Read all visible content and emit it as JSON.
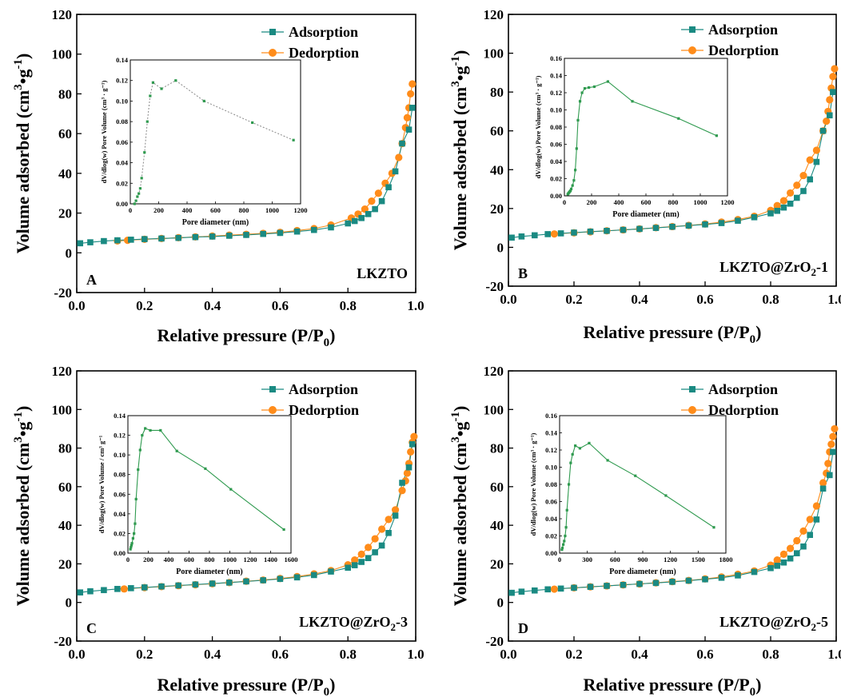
{
  "legend": {
    "adsorption": "Adsorption",
    "desorption": "Dedorption"
  },
  "colors": {
    "adsorption": "#1a8a82",
    "desorption": "#ff8c1a",
    "inset": "#2f9a4f"
  },
  "chart_data": [
    {
      "type": "line",
      "panel_letter": "A",
      "sample_label": "LKZTO",
      "xlabel": "Relative pressure (P/P",
      "xlabel_sub": "0",
      "xlabel_end": ")",
      "ylabel": "Volume adsorbed (cm",
      "ylabel_sup1": "3",
      "ylabel_mid": "•g",
      "ylabel_sup2": "-1",
      "ylabel_end": ")",
      "xlim": [
        0,
        1.0
      ],
      "ylim": [
        -20,
        120
      ],
      "xticks": [
        "0.0",
        "0.2",
        "0.4",
        "0.6",
        "0.8",
        "1.0"
      ],
      "yticks": [
        "-20",
        "0",
        "20",
        "40",
        "60",
        "80",
        "100",
        "120"
      ],
      "series": [
        {
          "name": "Adsorption",
          "x": [
            0.01,
            0.04,
            0.08,
            0.12,
            0.16,
            0.2,
            0.25,
            0.3,
            0.35,
            0.4,
            0.45,
            0.5,
            0.55,
            0.6,
            0.65,
            0.7,
            0.75,
            0.8,
            0.82,
            0.84,
            0.86,
            0.88,
            0.9,
            0.92,
            0.94,
            0.96,
            0.98,
            0.99
          ],
          "y": [
            4.8,
            5.3,
            5.9,
            6.3,
            6.6,
            6.9,
            7.2,
            7.5,
            7.9,
            8.2,
            8.6,
            9.0,
            9.5,
            10.0,
            10.7,
            11.5,
            12.8,
            14.8,
            16.0,
            17.5,
            19.5,
            22.0,
            26.0,
            33.0,
            41.0,
            55.0,
            62.0,
            73.0
          ]
        },
        {
          "name": "Dedorption",
          "x": [
            0.99,
            0.985,
            0.98,
            0.975,
            0.97,
            0.96,
            0.95,
            0.93,
            0.91,
            0.89,
            0.87,
            0.85,
            0.83,
            0.81,
            0.75,
            0.7,
            0.65,
            0.6,
            0.55,
            0.5,
            0.45,
            0.4,
            0.35,
            0.3,
            0.25,
            0.2,
            0.15,
            0.12
          ],
          "y": [
            85.0,
            80.0,
            73.0,
            68.0,
            63.0,
            55.0,
            48.0,
            40.0,
            35.0,
            30.0,
            26.0,
            22.0,
            19.5,
            17.5,
            14.0,
            12.2,
            11.2,
            10.3,
            9.8,
            9.3,
            8.9,
            8.4,
            8.0,
            7.6,
            7.2,
            6.8,
            6.3,
            6.0
          ]
        }
      ],
      "inset": {
        "type": "line",
        "xlabel": "Pore diameter (nm)",
        "ylabel": "dV/dlog(w) Pore Volume (cm³ · g⁻¹)",
        "xlim": [
          0,
          1200
        ],
        "ylim": [
          0,
          0.14
        ],
        "line_style": "dotted",
        "xticks": [
          "0",
          "200",
          "400",
          "600",
          "800",
          "1000",
          "1200"
        ],
        "yticks": [
          "0.00",
          "0.02",
          "0.04",
          "0.06",
          "0.08",
          "0.10",
          "0.12",
          "0.14"
        ],
        "x": [
          30,
          40,
          50,
          60,
          70,
          80,
          100,
          120,
          140,
          160,
          220,
          320,
          520,
          860,
          1150
        ],
        "y": [
          0.0,
          0.003,
          0.007,
          0.01,
          0.015,
          0.025,
          0.05,
          0.08,
          0.105,
          0.118,
          0.112,
          0.12,
          0.1,
          0.079,
          0.062
        ]
      }
    },
    {
      "type": "line",
      "panel_letter": "B",
      "sample_label": "LKZTO@ZrO",
      "sample_sub": "2",
      "sample_end": "-1",
      "xlabel": "Relative pressure (P/P",
      "xlabel_sub": "0",
      "xlabel_end": ")",
      "ylabel": "Volume adsorbed (cm",
      "ylabel_sup1": "3",
      "ylabel_mid": "•g",
      "ylabel_sup2": "-1",
      "ylabel_end": ")",
      "xlim": [
        0,
        1.0
      ],
      "ylim": [
        -20,
        120
      ],
      "xticks": [
        "0.0",
        "0.2",
        "0.4",
        "0.6",
        "0.8",
        "1.0"
      ],
      "yticks": [
        "-20",
        "0",
        "20",
        "40",
        "60",
        "80",
        "100",
        "120"
      ],
      "series": [
        {
          "name": "Adsorption",
          "x": [
            0.01,
            0.04,
            0.08,
            0.12,
            0.16,
            0.2,
            0.25,
            0.3,
            0.35,
            0.4,
            0.45,
            0.5,
            0.55,
            0.6,
            0.65,
            0.7,
            0.75,
            0.8,
            0.82,
            0.84,
            0.86,
            0.88,
            0.9,
            0.92,
            0.94,
            0.96,
            0.98,
            0.99
          ],
          "y": [
            5.0,
            5.6,
            6.2,
            6.8,
            7.2,
            7.6,
            8.1,
            8.5,
            9.0,
            9.5,
            10.0,
            10.6,
            11.2,
            11.8,
            12.5,
            13.7,
            15.5,
            17.5,
            18.8,
            20.5,
            22.5,
            25.5,
            29.0,
            35.0,
            44.0,
            60.0,
            68.0,
            80.0
          ]
        },
        {
          "name": "Dedorption",
          "x": [
            0.995,
            0.99,
            0.985,
            0.98,
            0.975,
            0.97,
            0.96,
            0.94,
            0.92,
            0.9,
            0.88,
            0.86,
            0.84,
            0.82,
            0.8,
            0.75,
            0.7,
            0.65,
            0.6,
            0.55,
            0.5,
            0.45,
            0.4,
            0.35,
            0.3,
            0.25,
            0.2,
            0.14
          ],
          "y": [
            92.0,
            88.0,
            82.0,
            76.0,
            70.0,
            65.0,
            60.0,
            50.0,
            45.0,
            37.0,
            32.0,
            28.0,
            24.0,
            21.5,
            19.0,
            16.0,
            14.3,
            13.0,
            12.0,
            11.3,
            10.7,
            10.1,
            9.5,
            9.0,
            8.5,
            8.0,
            7.5,
            6.9
          ]
        }
      ],
      "inset": {
        "type": "line",
        "xlabel": "Pore diameter (nm)",
        "ylabel": "dV/dlog(w) Pore Volume (cm³ · g⁻¹)",
        "xlim": [
          0,
          1200
        ],
        "ylim": [
          0,
          0.16
        ],
        "line_style": "solid",
        "xticks": [
          "0",
          "200",
          "400",
          "600",
          "800",
          "1000",
          "1200"
        ],
        "yticks": [
          "0.00",
          "0.02",
          "0.04",
          "0.06",
          "0.08",
          "0.10",
          "0.12",
          "0.14",
          "0.16"
        ],
        "x": [
          25,
          30,
          35,
          40,
          45,
          50,
          60,
          70,
          80,
          90,
          100,
          115,
          130,
          150,
          180,
          220,
          320,
          500,
          840,
          1120
        ],
        "y": [
          0.002,
          0.003,
          0.004,
          0.005,
          0.006,
          0.008,
          0.012,
          0.018,
          0.03,
          0.055,
          0.088,
          0.11,
          0.12,
          0.125,
          0.126,
          0.127,
          0.133,
          0.11,
          0.09,
          0.07
        ]
      }
    },
    {
      "type": "line",
      "panel_letter": "C",
      "sample_label": "LKZTO@ZrO",
      "sample_sub": "2",
      "sample_end": "-3",
      "xlabel": "Relative pressure (P/P",
      "xlabel_sub": "0",
      "xlabel_end": ")",
      "ylabel": "Volume adsorbed (cm",
      "ylabel_sup1": "3",
      "ylabel_mid": "•g",
      "ylabel_sup2": "-1",
      "ylabel_end": ")",
      "xlim": [
        0,
        1.0
      ],
      "ylim": [
        -20,
        120
      ],
      "xticks": [
        "0.0",
        "0.2",
        "0.4",
        "0.6",
        "0.8",
        "1.0"
      ],
      "yticks": [
        "-20",
        "0",
        "20",
        "40",
        "60",
        "80",
        "100",
        "120"
      ],
      "series": [
        {
          "name": "Adsorption",
          "x": [
            0.01,
            0.04,
            0.08,
            0.12,
            0.16,
            0.2,
            0.25,
            0.3,
            0.35,
            0.4,
            0.45,
            0.5,
            0.55,
            0.6,
            0.65,
            0.7,
            0.75,
            0.8,
            0.82,
            0.84,
            0.86,
            0.88,
            0.9,
            0.92,
            0.94,
            0.96,
            0.98,
            0.99
          ],
          "y": [
            5.2,
            5.8,
            6.4,
            7.0,
            7.4,
            7.8,
            8.3,
            8.8,
            9.3,
            9.8,
            10.3,
            10.9,
            11.5,
            12.2,
            13.0,
            14.2,
            16.0,
            18.0,
            19.3,
            21.0,
            23.0,
            26.0,
            29.5,
            36.0,
            45.0,
            62.0,
            70.0,
            82.0
          ]
        },
        {
          "name": "Dedorption",
          "x": [
            0.995,
            0.99,
            0.985,
            0.98,
            0.975,
            0.97,
            0.96,
            0.94,
            0.92,
            0.9,
            0.88,
            0.86,
            0.84,
            0.82,
            0.8,
            0.75,
            0.7,
            0.65,
            0.6,
            0.55,
            0.5,
            0.45,
            0.4,
            0.35,
            0.3,
            0.25,
            0.2,
            0.14
          ],
          "y": [
            86.0,
            83.0,
            78.0,
            72.0,
            67.0,
            63.0,
            58.0,
            48.0,
            43.0,
            38.0,
            33.0,
            28.5,
            25.0,
            22.0,
            19.5,
            16.5,
            14.8,
            13.4,
            12.4,
            11.6,
            11.0,
            10.3,
            9.7,
            9.2,
            8.7,
            8.2,
            7.7,
            7.0
          ]
        }
      ],
      "inset": {
        "type": "line",
        "xlabel": "Pore diameter (nm)",
        "ylabel": "dV/dlog(w) Pore Volume / cm³ g⁻¹",
        "xlim": [
          0,
          1600
        ],
        "ylim": [
          0,
          0.14
        ],
        "line_style": "solid",
        "xticks": [
          "0",
          "200",
          "400",
          "600",
          "800",
          "1000",
          "1200",
          "1400",
          "1600"
        ],
        "yticks": [
          "0.00",
          "0.02",
          "0.04",
          "0.06",
          "0.08",
          "0.10",
          "0.12",
          "0.14"
        ],
        "x": [
          25,
          30,
          35,
          40,
          50,
          60,
          70,
          80,
          100,
          120,
          140,
          170,
          220,
          320,
          480,
          760,
          1010,
          1530
        ],
        "y": [
          0.004,
          0.006,
          0.008,
          0.01,
          0.015,
          0.02,
          0.03,
          0.055,
          0.085,
          0.105,
          0.12,
          0.127,
          0.125,
          0.125,
          0.104,
          0.086,
          0.065,
          0.024
        ]
      }
    },
    {
      "type": "line",
      "panel_letter": "D",
      "sample_label": "LKZTO@ZrO",
      "sample_sub": "2",
      "sample_end": "-5",
      "xlabel": "Relative pressure (P/P",
      "xlabel_sub": "0",
      "xlabel_end": ")",
      "ylabel": "Volume adsorbed (cm",
      "ylabel_sup1": "3",
      "ylabel_mid": "•g",
      "ylabel_sup2": "-1",
      "ylabel_end": ")",
      "xlim": [
        0,
        1.0
      ],
      "ylim": [
        -20,
        120
      ],
      "xticks": [
        "0.0",
        "0.2",
        "0.4",
        "0.6",
        "0.8",
        "1.0"
      ],
      "yticks": [
        "-20",
        "0",
        "20",
        "40",
        "60",
        "80",
        "100",
        "120"
      ],
      "series": [
        {
          "name": "Adsorption",
          "x": [
            0.01,
            0.04,
            0.08,
            0.12,
            0.16,
            0.2,
            0.25,
            0.3,
            0.35,
            0.4,
            0.45,
            0.5,
            0.55,
            0.6,
            0.65,
            0.7,
            0.75,
            0.8,
            0.82,
            0.84,
            0.86,
            0.88,
            0.9,
            0.92,
            0.94,
            0.96,
            0.98,
            0.99
          ],
          "y": [
            5.0,
            5.6,
            6.2,
            6.8,
            7.2,
            7.6,
            8.1,
            8.6,
            9.1,
            9.6,
            10.1,
            10.7,
            11.3,
            12.0,
            12.8,
            14.0,
            15.8,
            17.8,
            19.0,
            20.7,
            22.8,
            25.5,
            29.0,
            35.0,
            43.0,
            59.0,
            66.0,
            78.0
          ]
        },
        {
          "name": "Dedorption",
          "x": [
            0.995,
            0.99,
            0.985,
            0.98,
            0.975,
            0.97,
            0.96,
            0.94,
            0.92,
            0.9,
            0.88,
            0.86,
            0.84,
            0.82,
            0.8,
            0.75,
            0.7,
            0.65,
            0.6,
            0.55,
            0.5,
            0.45,
            0.4,
            0.35,
            0.3,
            0.25,
            0.2,
            0.14
          ],
          "y": [
            90.0,
            86.0,
            82.0,
            78.0,
            72.0,
            67.0,
            62.0,
            50.0,
            43.0,
            37.0,
            32.0,
            28.0,
            25.0,
            22.0,
            19.3,
            16.3,
            14.6,
            13.2,
            12.2,
            11.4,
            10.8,
            10.2,
            9.6,
            9.1,
            8.6,
            8.1,
            7.6,
            6.9
          ]
        }
      ],
      "inset": {
        "type": "line",
        "xlabel": "Pore diameter (nm)",
        "ylabel": "dV/dlog(w) Pore Volume (cm³ · g⁻¹)",
        "xlim": [
          0,
          1800
        ],
        "ylim": [
          0,
          0.16
        ],
        "line_style": "solid",
        "xticks": [
          "0",
          "300",
          "600",
          "900",
          "1200",
          "1500",
          "1800"
        ],
        "yticks": [
          "0.00",
          "0.02",
          "0.04",
          "0.06",
          "0.08",
          "0.10",
          "0.12",
          "0.14",
          "0.16"
        ],
        "x": [
          25,
          30,
          40,
          50,
          60,
          70,
          80,
          100,
          120,
          140,
          170,
          220,
          320,
          520,
          820,
          1150,
          1670
        ],
        "y": [
          0.004,
          0.006,
          0.01,
          0.014,
          0.02,
          0.03,
          0.05,
          0.08,
          0.105,
          0.115,
          0.125,
          0.122,
          0.128,
          0.108,
          0.09,
          0.067,
          0.03
        ]
      }
    }
  ]
}
